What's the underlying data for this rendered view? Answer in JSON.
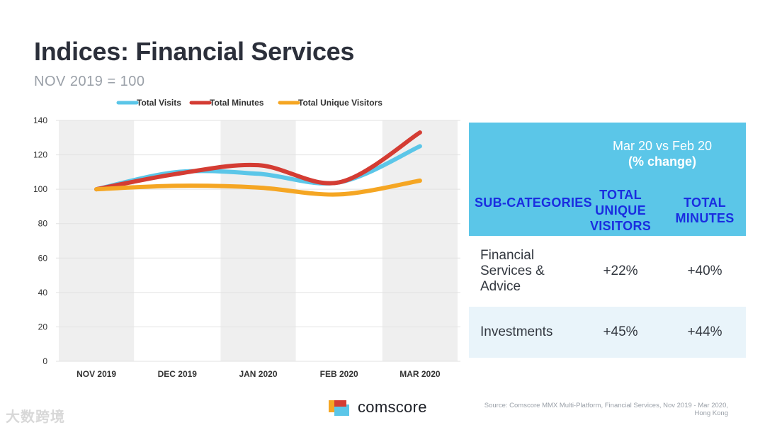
{
  "header": {
    "title": "Indices: Financial Services",
    "subtitle": "NOV 2019 = 100"
  },
  "chart_data": {
    "type": "line",
    "categories": [
      "NOV 2019",
      "DEC 2019",
      "JAN 2020",
      "FEB 2020",
      "MAR 2020"
    ],
    "series": [
      {
        "name": "Total Visits",
        "color": "#5bc6e8",
        "values": [
          100,
          110,
          109,
          104,
          125
        ]
      },
      {
        "name": "Total Minutes",
        "color": "#d43c33",
        "values": [
          100,
          109,
          114,
          104,
          133
        ]
      },
      {
        "name": "Total Unique Visitors",
        "color": "#f5a623",
        "values": [
          100,
          102,
          101,
          97,
          105
        ]
      }
    ],
    "ylim": [
      0,
      140
    ],
    "yticks": [
      0,
      20,
      40,
      60,
      80,
      100,
      120,
      140
    ],
    "legend": "top",
    "grid": true,
    "title": "",
    "xlabel": "",
    "ylabel": ""
  },
  "table": {
    "period": "Mar 20 vs Feb 20",
    "period_note": "(% change)",
    "columns": [
      "SUB-CATEGORIES",
      "TOTAL UNIQUE VISITORS",
      "TOTAL MINUTES"
    ],
    "rows": [
      {
        "name": "Financial Services & Advice",
        "unique": "+22%",
        "minutes": "+40%"
      },
      {
        "name": "Investments",
        "unique": "+45%",
        "minutes": "+44%"
      }
    ]
  },
  "footer": {
    "brand": "comscore",
    "source": "Source: Comscore MMX Multi-Platform, Financial Services, Nov 2019 - Mar 2020, Hong Kong",
    "watermark": "大数跨境"
  },
  "colors": {
    "header_bg": "#5bc6e8",
    "header_text": "#1a2de0",
    "row_alt": "#e9f4fa"
  }
}
